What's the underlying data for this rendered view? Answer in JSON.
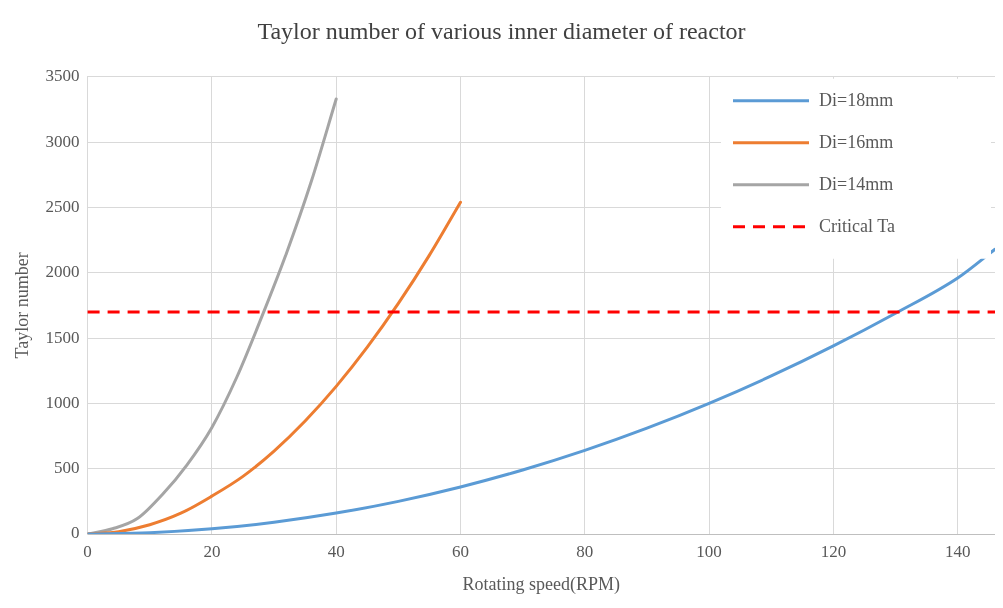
{
  "chart_data": {
    "type": "line",
    "title": "Taylor number of various inner diameter of reactor",
    "xlabel": "Rotating speed(RPM)",
    "ylabel": "Taylor number",
    "series": [
      {
        "name": "Di=18mm",
        "color": "#5b9bd5",
        "x": [
          0,
          10,
          20,
          30,
          40,
          50,
          60,
          70,
          80,
          90,
          100,
          110,
          120,
          130,
          140,
          146
        ],
        "values": [
          0,
          10,
          40,
          90,
          160,
          250,
          360,
          490,
          640,
          810,
          1000,
          1210,
          1440,
          1690,
          1960,
          2180
        ]
      },
      {
        "name": "Di=16mm",
        "color": "#ed7d31",
        "x": [
          0,
          5,
          10,
          15,
          20,
          25,
          30,
          35,
          40,
          45,
          50,
          55,
          60
        ],
        "values": [
          0,
          18,
          71,
          159,
          290,
          441,
          635,
          865,
          1130,
          1430,
          1765,
          2135,
          2540
        ]
      },
      {
        "name": "Di=14mm",
        "color": "#a5a5a5",
        "x": [
          0,
          4,
          8,
          12,
          16,
          20,
          24,
          28,
          32,
          36,
          40
        ],
        "values": [
          0,
          40,
          118,
          300,
          530,
          816,
          1200,
          1660,
          2150,
          2700,
          3330
        ]
      }
    ],
    "ref_lines": [
      {
        "axis": "y",
        "value": 1700,
        "label": "Critical Ta",
        "color": "#ff0000",
        "line_style": "dashed"
      }
    ],
    "xlim": [
      0,
      146
    ],
    "xticks": [
      0,
      20,
      40,
      60,
      80,
      100,
      120,
      140
    ],
    "ylim": [
      0,
      3500
    ],
    "yticks": [
      0,
      500,
      1000,
      1500,
      2000,
      2500,
      3000,
      3500
    ],
    "grid": true,
    "legend": "top right",
    "marker": "none",
    "line_style": "solid"
  }
}
